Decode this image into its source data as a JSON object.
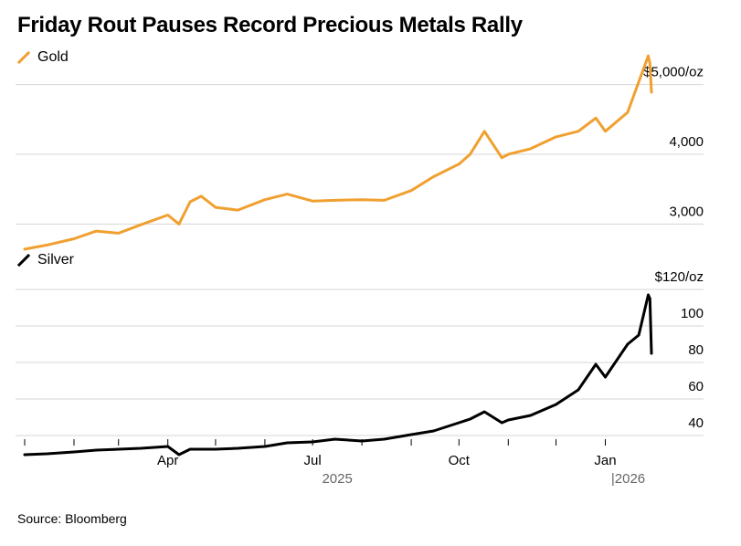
{
  "title": "Friday Rout Pauses Record Precious Metals Rally",
  "source": "Source: Bloomberg",
  "colors": {
    "gold": "#f0a030",
    "silver": "#000000",
    "grid": "#d4d4d4"
  },
  "legend": {
    "gold": {
      "label": "Gold",
      "icon": "slash-line-icon"
    },
    "silver": {
      "label": "Silver",
      "icon": "slash-line-icon"
    }
  },
  "x_axis": {
    "labels": [
      "Apr",
      "Jul",
      "Oct",
      "Jan"
    ],
    "years": [
      "2025",
      "|2026"
    ]
  },
  "chart_data": [
    {
      "type": "line",
      "name": "Gold",
      "ylim": [
        2600,
        5400
      ],
      "yticks": [
        3000,
        4000,
        5000
      ],
      "ytick_labels": [
        "3,000",
        "4,000",
        "$5,000/oz"
      ],
      "x": [
        "2025-01-01",
        "2025-01-15",
        "2025-02-01",
        "2025-02-15",
        "2025-03-01",
        "2025-03-15",
        "2025-04-01",
        "2025-04-08",
        "2025-04-15",
        "2025-04-22",
        "2025-05-01",
        "2025-05-15",
        "2025-06-01",
        "2025-06-15",
        "2025-07-01",
        "2025-07-15",
        "2025-08-01",
        "2025-08-15",
        "2025-09-01",
        "2025-09-15",
        "2025-10-01",
        "2025-10-08",
        "2025-10-17",
        "2025-10-28",
        "2025-11-01",
        "2025-11-15",
        "2025-12-01",
        "2025-12-15",
        "2025-12-26",
        "2026-01-01",
        "2026-01-15",
        "2026-01-28",
        "2026-01-29",
        "2026-01-30"
      ],
      "y": [
        2640,
        2700,
        2790,
        2900,
        2870,
        2990,
        3130,
        3000,
        3320,
        3400,
        3240,
        3200,
        3350,
        3430,
        3330,
        3340,
        3350,
        3340,
        3480,
        3680,
        3860,
        4000,
        4330,
        3950,
        4000,
        4080,
        4250,
        4330,
        4520,
        4330,
        4600,
        5410,
        5300,
        4890
      ]
    },
    {
      "type": "line",
      "name": "Silver",
      "ylim": [
        25,
        130
      ],
      "yticks": [
        40,
        60,
        80,
        100,
        120
      ],
      "ytick_labels": [
        "40",
        "60",
        "80",
        "100",
        "$120/oz"
      ],
      "x": [
        "2025-01-01",
        "2025-01-15",
        "2025-02-01",
        "2025-02-15",
        "2025-03-01",
        "2025-03-15",
        "2025-04-01",
        "2025-04-08",
        "2025-04-15",
        "2025-05-01",
        "2025-05-15",
        "2025-06-01",
        "2025-06-15",
        "2025-07-01",
        "2025-07-15",
        "2025-08-01",
        "2025-08-15",
        "2025-09-01",
        "2025-09-15",
        "2025-10-01",
        "2025-10-08",
        "2025-10-17",
        "2025-10-28",
        "2025-11-01",
        "2025-11-15",
        "2025-12-01",
        "2025-12-15",
        "2025-12-26",
        "2026-01-01",
        "2026-01-15",
        "2026-01-22",
        "2026-01-28",
        "2026-01-29",
        "2026-01-30"
      ],
      "y": [
        29.5,
        30,
        31,
        32,
        32.5,
        33,
        34,
        29.5,
        32.5,
        32.5,
        33,
        34,
        36,
        36.5,
        38,
        37,
        38,
        40.5,
        42.5,
        47,
        49,
        53,
        47,
        48.5,
        51,
        57,
        65,
        79,
        72,
        90,
        95,
        117,
        115,
        85
      ]
    }
  ]
}
